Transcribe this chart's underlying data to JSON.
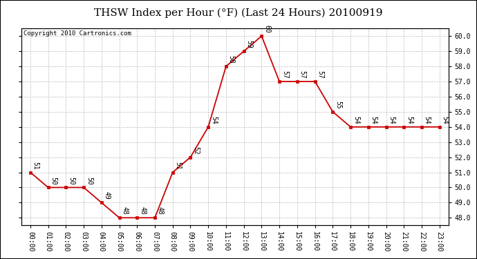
{
  "title": "THSW Index per Hour (°F) (Last 24 Hours) 20100919",
  "copyright": "Copyright 2010 Cartronics.com",
  "hours": [
    0,
    1,
    2,
    3,
    4,
    5,
    6,
    7,
    8,
    9,
    10,
    11,
    12,
    13,
    14,
    15,
    16,
    17,
    18,
    19,
    20,
    21,
    22,
    23
  ],
  "values": [
    51,
    50,
    50,
    50,
    49,
    48,
    48,
    48,
    51,
    52,
    54,
    58,
    59,
    60,
    57,
    57,
    57,
    55,
    54,
    54,
    54,
    54,
    54,
    54
  ],
  "xlabels": [
    "00:00",
    "01:00",
    "02:00",
    "03:00",
    "04:00",
    "05:00",
    "06:00",
    "07:00",
    "08:00",
    "09:00",
    "10:00",
    "11:00",
    "12:00",
    "13:00",
    "14:00",
    "15:00",
    "16:00",
    "17:00",
    "18:00",
    "19:00",
    "20:00",
    "21:00",
    "22:00",
    "23:00"
  ],
  "ylim": [
    47.5,
    60.5
  ],
  "yticks": [
    48.0,
    49.0,
    50.0,
    51.0,
    52.0,
    53.0,
    54.0,
    55.0,
    56.0,
    57.0,
    58.0,
    59.0,
    60.0
  ],
  "line_color": "#cc0000",
  "marker_color": "#cc0000",
  "bg_color": "#ffffff",
  "plot_bg": "#ffffff",
  "grid_color": "#bbbbbb",
  "title_fontsize": 11,
  "label_fontsize": 7,
  "tick_fontsize": 7,
  "copyright_fontsize": 6.5,
  "outer_border_color": "#000000"
}
